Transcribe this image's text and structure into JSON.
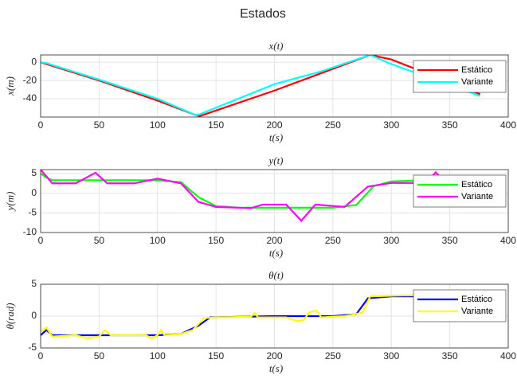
{
  "title": "Estados",
  "chart_data": [
    {
      "type": "line",
      "title": "x(t)",
      "x_label": "t(s)",
      "y_label": "x(m)",
      "xlim": [
        0,
        400
      ],
      "xticks": [
        0,
        50,
        100,
        150,
        200,
        250,
        300,
        350,
        400
      ],
      "ylim": [
        -60,
        8
      ],
      "yticks": [
        -40,
        -20,
        0
      ],
      "grid": true,
      "legend": "northeast",
      "series": [
        {
          "name": "Estático",
          "color": "#ff0000",
          "x": [
            0,
            5,
            50,
            100,
            133,
            136,
            200,
            240,
            282,
            300,
            350,
            376
          ],
          "values": [
            0,
            -2,
            -20,
            -42,
            -58,
            -59,
            -31,
            -12,
            8,
            3,
            -22,
            -35
          ]
        },
        {
          "name": "Variante",
          "color": "#00ffff",
          "x": [
            0,
            5,
            50,
            100,
            133,
            136,
            200,
            240,
            282,
            300,
            350,
            376
          ],
          "values": [
            0,
            -1,
            -19,
            -40,
            -58,
            -57,
            -24,
            -10,
            8,
            -2,
            -25,
            -37
          ]
        }
      ]
    },
    {
      "type": "line",
      "title": "y(t)",
      "x_label": "t(s)",
      "y_label": "y(m)",
      "xlim": [
        0,
        400
      ],
      "xticks": [
        0,
        50,
        100,
        150,
        200,
        250,
        300,
        350,
        400
      ],
      "ylim": [
        -10,
        6
      ],
      "yticks": [
        -10,
        -5,
        0,
        5
      ],
      "grid": true,
      "legend": "northeast",
      "series": [
        {
          "name": "Estático",
          "color": "#00ff00",
          "x": [
            0,
            5,
            10,
            100,
            120,
            135,
            150,
            170,
            200,
            250,
            270,
            285,
            300,
            330,
            376
          ],
          "values": [
            5,
            4,
            3.3,
            3.3,
            2.8,
            -1,
            -3.3,
            -3.7,
            -3.7,
            -3.7,
            -3,
            1.8,
            3,
            3.3,
            3.3
          ]
        },
        {
          "name": "Variante",
          "color": "#ff00ff",
          "x": [
            0,
            10,
            30,
            47,
            57,
            80,
            100,
            120,
            135,
            150,
            180,
            190,
            210,
            223,
            235,
            260,
            280,
            300,
            330,
            338,
            345
          ],
          "values": [
            6,
            2.5,
            2.5,
            5.2,
            2.5,
            2.5,
            3.7,
            2.5,
            -2.2,
            -3.5,
            -3.8,
            -2.9,
            -2.9,
            -7,
            -2.9,
            -3.5,
            1.7,
            2.6,
            2.6,
            5.3,
            3
          ]
        }
      ]
    },
    {
      "type": "line",
      "title": "θ(t)",
      "x_label": "t(s)",
      "y_label": "θ(rad)",
      "xlim": [
        0,
        400
      ],
      "xticks": [
        0,
        50,
        100,
        150,
        200,
        250,
        300,
        350,
        400
      ],
      "ylim": [
        -5,
        5
      ],
      "yticks": [
        -5,
        0,
        5
      ],
      "grid": true,
      "legend": "northeast",
      "series": [
        {
          "name": "Estático",
          "color": "#0000ff",
          "x": [
            0,
            5,
            10,
            100,
            120,
            135,
            145,
            200,
            250,
            270,
            280,
            300,
            340
          ],
          "values": [
            -3,
            -2.2,
            -3,
            -3,
            -2.8,
            -1.5,
            -0.2,
            0,
            0,
            0.3,
            2.8,
            3.1,
            3.1
          ]
        },
        {
          "name": "Variante",
          "color": "#ffff00",
          "x": [
            0,
            5,
            10,
            30,
            40,
            50,
            55,
            60,
            90,
            95,
            100,
            103,
            106,
            120,
            130,
            140,
            150,
            180,
            183,
            186,
            210,
            220,
            225,
            230,
            236,
            240,
            260,
            275,
            282,
            300,
            330
          ],
          "values": [
            -2.5,
            -1.8,
            -3.2,
            -3,
            -3.5,
            -3.2,
            -2.2,
            -3,
            -3,
            -3.5,
            -3,
            -2.2,
            -3,
            -2.8,
            -2.2,
            -0.3,
            -0.2,
            -0.1,
            0.5,
            -0.2,
            -0.2,
            -0.8,
            -0.6,
            0.6,
            0.9,
            -0.2,
            0,
            0.5,
            3.1,
            3.2,
            3.3
          ]
        }
      ]
    }
  ]
}
